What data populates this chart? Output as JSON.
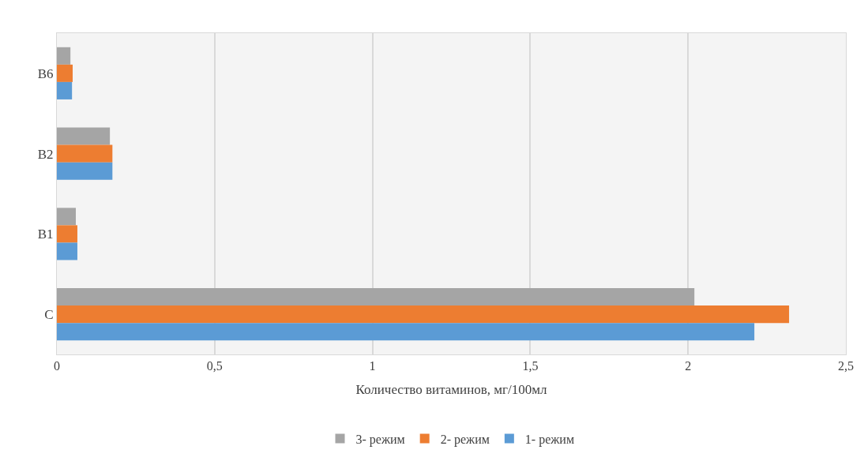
{
  "chart_data": {
    "type": "bar",
    "orientation": "horizontal",
    "xlabel": "Количество витаминов, мг/100мл",
    "categories": [
      "B6",
      "B2",
      "B1",
      "C"
    ],
    "series": [
      {
        "name": "3- режим",
        "color": "#a5a5a5",
        "values": [
          0.043,
          0.168,
          0.06,
          2.02
        ]
      },
      {
        "name": "2- режим",
        "color": "#ed7d31",
        "values": [
          0.05,
          0.176,
          0.065,
          2.32
        ]
      },
      {
        "name": "1- режим",
        "color": "#5b9bd5",
        "values": [
          0.048,
          0.176,
          0.065,
          2.21
        ]
      }
    ],
    "xlim": [
      0,
      2.5
    ],
    "xticks": [
      0,
      {
        "value": 0.5,
        "label": "0,5"
      },
      1,
      {
        "value": 1.5,
        "label": "1,5"
      },
      2,
      {
        "value": 2.5,
        "label": "2,5"
      }
    ],
    "grid": "x",
    "legend": "bottom"
  }
}
